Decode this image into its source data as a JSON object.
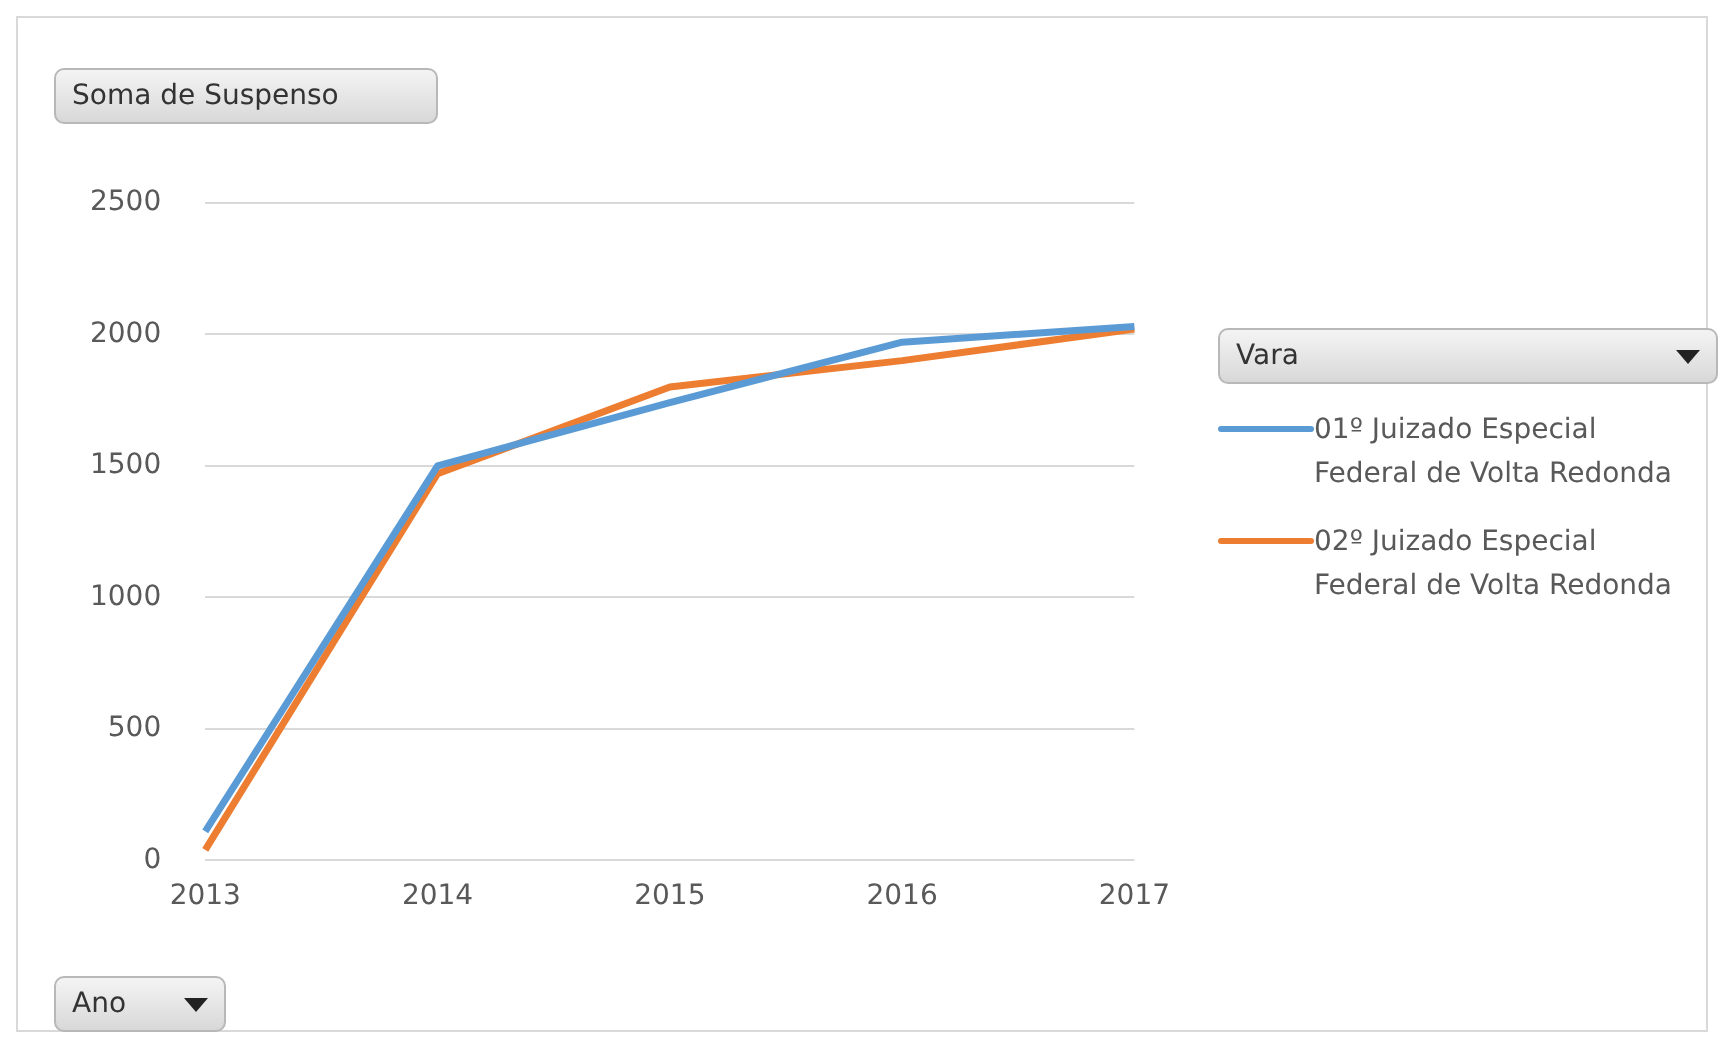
{
  "chart_data": {
    "type": "line",
    "ylabel": "Soma de Suspenso",
    "xlabel": "Ano",
    "legend_title": "Vara",
    "categories": [
      "2013",
      "2014",
      "2015",
      "2016",
      "2017"
    ],
    "series": [
      {
        "name": "01º Juizado Especial Federal de Volta Redonda",
        "color": "#5b9bd5",
        "values": [
          110,
          1500,
          1740,
          1970,
          2030
        ]
      },
      {
        "name": "02º Juizado Especial Federal de Volta Redonda",
        "color": "#ed7d31",
        "values": [
          40,
          1470,
          1800,
          1900,
          2020
        ]
      }
    ],
    "ylim": [
      0,
      2500
    ],
    "yticks": [
      0,
      500,
      1000,
      1500,
      2000,
      2500
    ],
    "grid": "y",
    "legend": "right",
    "marker": "none",
    "line_style": "solid"
  }
}
